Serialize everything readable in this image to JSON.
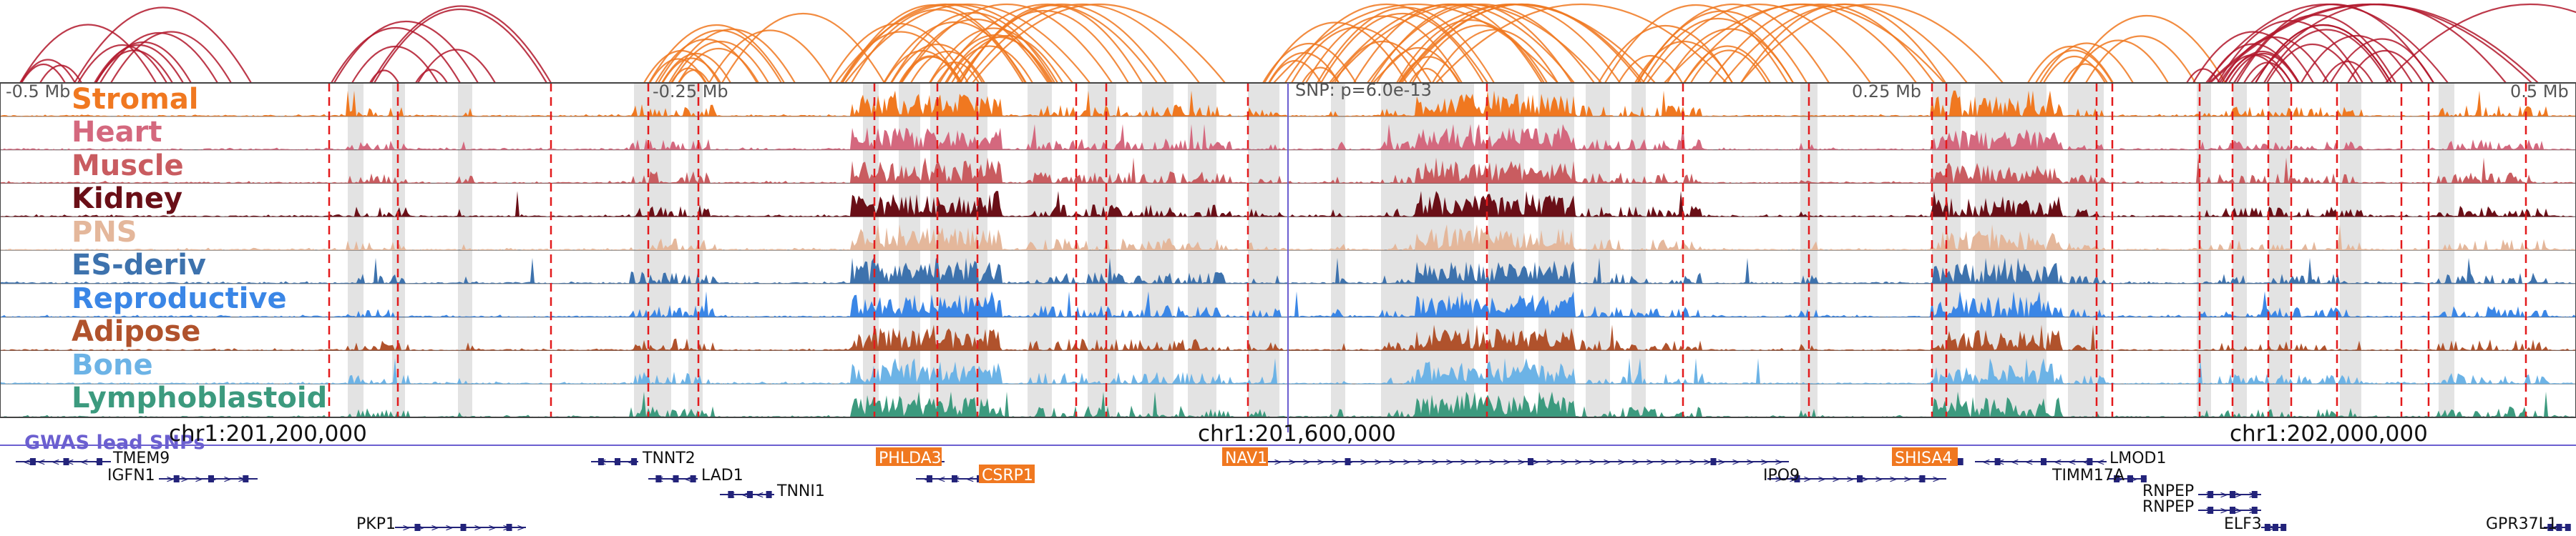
{
  "window": {
    "scale_labels": [
      "-0.5 Mb",
      "-0.25 Mb",
      "0.25 Mb",
      "0.5 Mb"
    ],
    "snp_label": "SNP: p=6.0e-13"
  },
  "tracks": [
    {
      "label": "Stromal",
      "color": "#f07820"
    },
    {
      "label": "Heart",
      "color": "#d4687e"
    },
    {
      "label": "Muscle",
      "color": "#c95c60"
    },
    {
      "label": "Kidney",
      "color": "#6a0f17"
    },
    {
      "label": "PNS",
      "color": "#e4b79b"
    },
    {
      "label": "ES-deriv",
      "color": "#3d72ad"
    },
    {
      "label": "Reproductive",
      "color": "#3a86e6"
    },
    {
      "label": "Adipose",
      "color": "#b0522c"
    },
    {
      "label": "Bone",
      "color": "#6cb3e6"
    },
    {
      "label": "Lymphoblastoid",
      "color": "#3c9a7e"
    }
  ],
  "gwas": {
    "label": "GWAS lead SNPs",
    "color": "#6b5fd0"
  },
  "coordinates": [
    "chr1:201,200,000",
    "chr1:201,600,000",
    "chr1:202,000,000"
  ],
  "genes": [
    {
      "name": "TMEM9",
      "highlight": false,
      "strand": "-"
    },
    {
      "name": "IGFN1",
      "highlight": false,
      "strand": "+"
    },
    {
      "name": "PKP1",
      "highlight": false,
      "strand": "+"
    },
    {
      "name": "TNNT2",
      "highlight": false,
      "strand": "-"
    },
    {
      "name": "LAD1",
      "highlight": false,
      "strand": "-"
    },
    {
      "name": "TNNI1",
      "highlight": false,
      "strand": "-"
    },
    {
      "name": "PHLDA3",
      "highlight": true,
      "strand": "-"
    },
    {
      "name": "CSRP1",
      "highlight": true,
      "strand": "-"
    },
    {
      "name": "NAV1",
      "highlight": true,
      "strand": "+"
    },
    {
      "name": "IPO9",
      "highlight": false,
      "strand": "+"
    },
    {
      "name": "SHISA4",
      "highlight": true,
      "strand": "+"
    },
    {
      "name": "LMOD1",
      "highlight": false,
      "strand": "-"
    },
    {
      "name": "TIMM17A",
      "highlight": false,
      "strand": "+"
    },
    {
      "name": "RNPEP",
      "highlight": false,
      "strand": "+"
    },
    {
      "name": "RNPEP",
      "highlight": false,
      "strand": "+"
    },
    {
      "name": "ELF3",
      "highlight": false,
      "strand": "+"
    },
    {
      "name": "GPR37L1",
      "highlight": false,
      "strand": "-"
    }
  ],
  "colors": {
    "highlight_bg": "#f07820",
    "gene_line": "#23237a",
    "peak_line": "#e31a1c",
    "arc_orange": "#f07820",
    "arc_red": "#b2182b",
    "shade": "#e3e3e3"
  }
}
